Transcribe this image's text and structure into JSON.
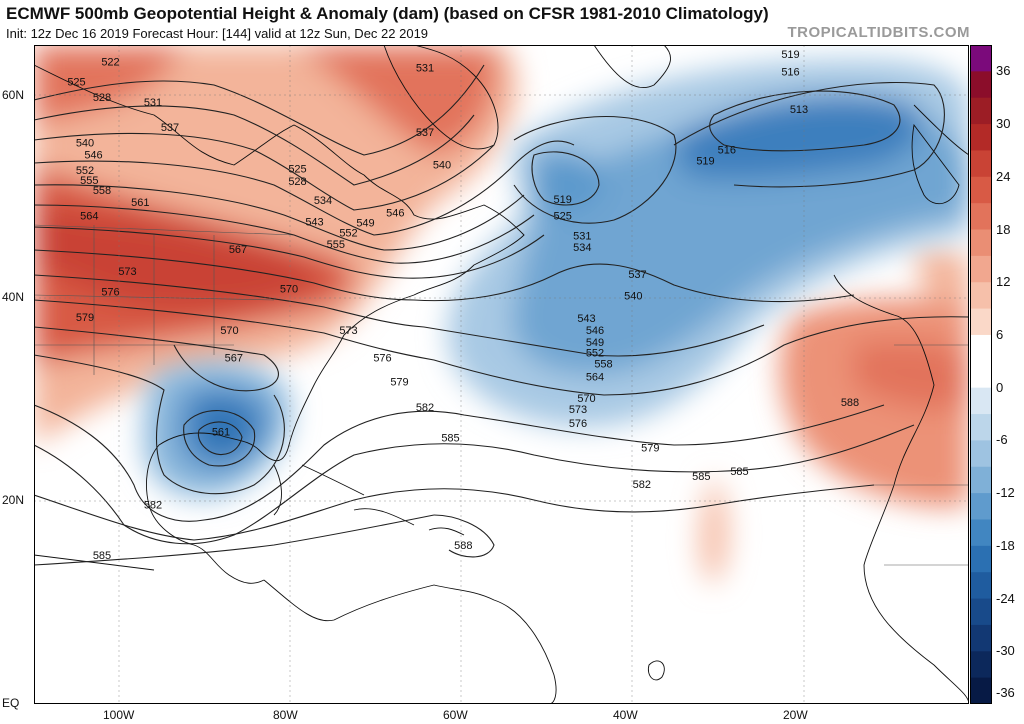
{
  "header": {
    "title": "ECMWF 500mb Geopotential Height & Anomaly (dam) (based on CFSR 1981-2010 Climatology)",
    "subtitle": "Init: 12z Dec 16 2019   Forecast Hour: [144]   valid at 12z Sun, Dec 22 2019",
    "brand": "TROPICALTIDBITS.COM"
  },
  "map": {
    "region": "North Atlantic",
    "latitude_labels": [
      "60N",
      "40N",
      "20N",
      "EQ"
    ],
    "longitude_labels": [
      "100W",
      "80W",
      "60W",
      "40W",
      "20W"
    ],
    "height_contour_labels": [
      "522",
      "525",
      "528",
      "531",
      "537",
      "540",
      "546",
      "549",
      "552",
      "555",
      "558",
      "561",
      "564",
      "567",
      "570",
      "573",
      "576",
      "579",
      "582",
      "585",
      "588",
      "519",
      "516",
      "513",
      "534",
      "543"
    ],
    "contour_label_marks": [
      {
        "text": "522",
        "lon": -101,
        "lat": 63
      },
      {
        "text": "525",
        "lon": -105,
        "lat": 61
      },
      {
        "text": "528",
        "lon": -102,
        "lat": 59.5
      },
      {
        "text": "531",
        "lon": -96,
        "lat": 59
      },
      {
        "text": "537",
        "lon": -94,
        "lat": 56.5
      },
      {
        "text": "540",
        "lon": -104,
        "lat": 55
      },
      {
        "text": "546",
        "lon": -103,
        "lat": 53.8
      },
      {
        "text": "552",
        "lon": -104,
        "lat": 52.3
      },
      {
        "text": "555",
        "lon": -103.5,
        "lat": 51.3
      },
      {
        "text": "558",
        "lon": -102,
        "lat": 50.3
      },
      {
        "text": "561",
        "lon": -97.5,
        "lat": 49.1
      },
      {
        "text": "564",
        "lon": -103.5,
        "lat": 47.8
      },
      {
        "text": "567",
        "lon": -86,
        "lat": 44.5
      },
      {
        "text": "570",
        "lon": -80,
        "lat": 40.6
      },
      {
        "text": "573",
        "lon": -99,
        "lat": 42.3
      },
      {
        "text": "576",
        "lon": -101,
        "lat": 40.3
      },
      {
        "text": "579",
        "lon": -104,
        "lat": 37.8
      },
      {
        "text": "570",
        "lon": -87,
        "lat": 36.5
      },
      {
        "text": "567",
        "lon": -86.5,
        "lat": 33.8
      },
      {
        "text": "561",
        "lon": -88,
        "lat": 26.5
      },
      {
        "text": "582",
        "lon": -96,
        "lat": 19.3
      },
      {
        "text": "585",
        "lon": -102,
        "lat": 14.3
      },
      {
        "text": "525",
        "lon": -79,
        "lat": 52.4
      },
      {
        "text": "528",
        "lon": -79,
        "lat": 51.2
      },
      {
        "text": "534",
        "lon": -76,
        "lat": 49.3
      },
      {
        "text": "543",
        "lon": -77,
        "lat": 47.2
      },
      {
        "text": "549",
        "lon": -71,
        "lat": 47.1
      },
      {
        "text": "546",
        "lon": -67.5,
        "lat": 48.1
      },
      {
        "text": "552",
        "lon": -73,
        "lat": 46.1
      },
      {
        "text": "555",
        "lon": -74.5,
        "lat": 45.0
      },
      {
        "text": "531",
        "lon": -64,
        "lat": 62.4
      },
      {
        "text": "537",
        "lon": -64,
        "lat": 56.0
      },
      {
        "text": "540",
        "lon": -62,
        "lat": 52.8
      },
      {
        "text": "573",
        "lon": -73,
        "lat": 36.5
      },
      {
        "text": "576",
        "lon": -69,
        "lat": 33.8
      },
      {
        "text": "579",
        "lon": -67,
        "lat": 31.4
      },
      {
        "text": "582",
        "lon": -64,
        "lat": 28.9
      },
      {
        "text": "585",
        "lon": -61,
        "lat": 25.9
      },
      {
        "text": "588",
        "lon": -59.5,
        "lat": 15.3
      },
      {
        "text": "519",
        "lon": -47.8,
        "lat": 49.4
      },
      {
        "text": "525",
        "lon": -47.8,
        "lat": 47.8
      },
      {
        "text": "531",
        "lon": -45.5,
        "lat": 45.8
      },
      {
        "text": "534",
        "lon": -45.5,
        "lat": 44.7
      },
      {
        "text": "537",
        "lon": -39,
        "lat": 42.0
      },
      {
        "text": "540",
        "lon": -39.5,
        "lat": 39.9
      },
      {
        "text": "543",
        "lon": -45,
        "lat": 37.7
      },
      {
        "text": "546",
        "lon": -44,
        "lat": 36.5
      },
      {
        "text": "549",
        "lon": -44,
        "lat": 35.3
      },
      {
        "text": "552",
        "lon": -44,
        "lat": 34.3
      },
      {
        "text": "558",
        "lon": -43,
        "lat": 33.2
      },
      {
        "text": "564",
        "lon": -44,
        "lat": 31.9
      },
      {
        "text": "570",
        "lon": -45,
        "lat": 29.8
      },
      {
        "text": "573",
        "lon": -46,
        "lat": 28.7
      },
      {
        "text": "576",
        "lon": -46,
        "lat": 27.3
      },
      {
        "text": "579",
        "lon": -37.5,
        "lat": 24.9
      },
      {
        "text": "582",
        "lon": -38.5,
        "lat": 21.3
      },
      {
        "text": "585",
        "lon": -31.5,
        "lat": 22.1
      },
      {
        "text": "585",
        "lon": -27,
        "lat": 22.6
      },
      {
        "text": "588",
        "lon": -14,
        "lat": 29.4
      },
      {
        "text": "519",
        "lon": -21,
        "lat": 63.7
      },
      {
        "text": "516",
        "lon": -21,
        "lat": 62.0
      },
      {
        "text": "513",
        "lon": -20,
        "lat": 58.3
      },
      {
        "text": "516",
        "lon": -28.5,
        "lat": 54.3
      },
      {
        "text": "519",
        "lon": -31,
        "lat": 53.2
      }
    ]
  },
  "colorbar": {
    "label_values": [
      "36",
      "30",
      "24",
      "18",
      "12",
      "6",
      "0",
      "-6",
      "-12",
      "-18",
      "-24",
      "-30",
      "-36"
    ],
    "levels": [
      36,
      33,
      30,
      27,
      24,
      21,
      18,
      15,
      12,
      9,
      6,
      3,
      0,
      -3,
      -6,
      -9,
      -12,
      -15,
      -18,
      -21,
      -24,
      -27,
      -30,
      -33,
      -36
    ],
    "colors": [
      "#7b0a7b",
      "#8b0d2a",
      "#9c1d25",
      "#b32a27",
      "#c94335",
      "#d85a45",
      "#e2735b",
      "#ea8e74",
      "#f1a78f",
      "#f6c0aa",
      "#fad8c8",
      "#ffffff",
      "#ffffff",
      "#d9e7f3",
      "#bcd6ea",
      "#9ec3e1",
      "#7fb0d7",
      "#5f9bcd",
      "#4186c1",
      "#2b70b2",
      "#1f5c9f",
      "#184a8a",
      "#123873",
      "#0c285b",
      "#071a45"
    ]
  },
  "colors": {
    "positive_strong": "#c94335",
    "positive_light": "#f6c0aa",
    "negative_strong": "#1f5c9f",
    "negative_light": "#bcd6ea",
    "contour": "#222222",
    "coastline": "#111111"
  }
}
